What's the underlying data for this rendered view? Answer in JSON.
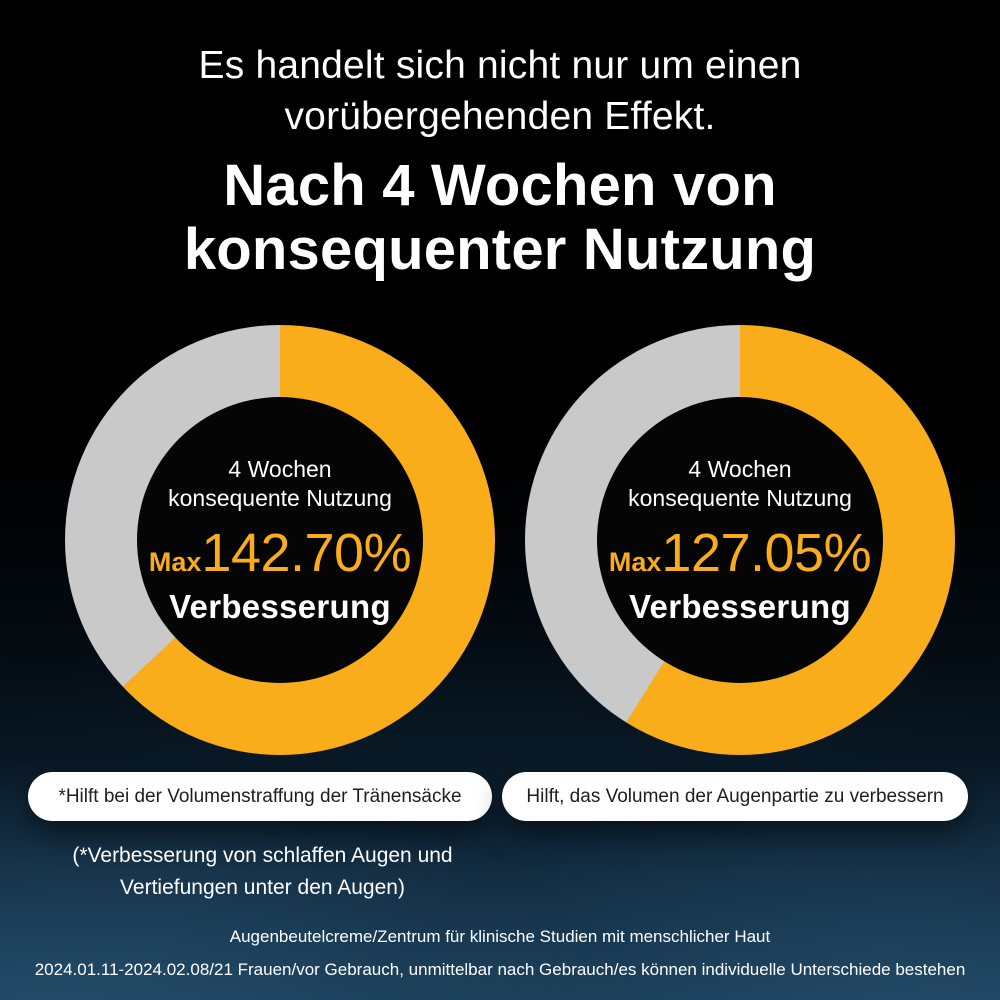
{
  "theme": {
    "accent": "#F9AD1B",
    "track_gray": "#C9C9CA",
    "background_top": "#000000",
    "background_bottom": "#14314A",
    "pill_bg": "#FFFFFF",
    "pill_text": "#1E1E1E",
    "text_white": "#FFFFFF"
  },
  "header": {
    "subtitle_line1": "Es handelt sich nicht nur um einen",
    "subtitle_line2": "vorübergehenden Effekt.",
    "title_line1": "Nach 4 Wochen von",
    "title_line2": "konsequenter Nutzung"
  },
  "chart_data": [
    {
      "type": "pie",
      "variant": "donut",
      "title": "4 Wochen konsequente Nutzung",
      "label_line1": "4 Wochen",
      "label_line2": "konsequente Nutzung",
      "max_prefix": "Max",
      "value_text": "142.70%",
      "value_pct": 142.7,
      "caption": "Verbesserung",
      "sweep_css": "227deg",
      "segments": [
        {
          "name": "improved",
          "color": "#F9AD1B",
          "sweep_deg": 227,
          "fraction": 0.63
        },
        {
          "name": "remainder",
          "color": "#C9C9CA",
          "sweep_deg": 133,
          "fraction": 0.37
        }
      ],
      "start_position": "12-oclock",
      "direction": "clockwise",
      "legend": "none"
    },
    {
      "type": "pie",
      "variant": "donut",
      "title": "4 Wochen konsequente Nutzung",
      "label_line1": "4 Wochen",
      "label_line2": "konsequente Nutzung",
      "max_prefix": "Max",
      "value_text": "127.05%",
      "value_pct": 127.05,
      "caption": "Verbesserung",
      "sweep_css": "212deg",
      "segments": [
        {
          "name": "improved",
          "color": "#F9AD1B",
          "sweep_deg": 212,
          "fraction": 0.59
        },
        {
          "name": "remainder",
          "color": "#C9C9CA",
          "sweep_deg": 148,
          "fraction": 0.41
        }
      ],
      "start_position": "12-oclock",
      "direction": "clockwise",
      "legend": "none"
    }
  ],
  "pills": [
    {
      "label": "*Hilft bei der Volumenstraffung der Tränensäcke"
    },
    {
      "label": "Hilft, das Volumen der Augenpartie zu verbessern"
    }
  ],
  "footnote": {
    "line1": "(*Verbesserung von schlaffen Augen und",
    "line2": "Vertiefungen unter den Augen)"
  },
  "footer": {
    "line1": "Augenbeutelcreme/Zentrum für klinische Studien mit menschlicher Haut",
    "line2": "2024.01.11-2024.02.08/21 Frauen/vor Gebrauch, unmittelbar nach Gebrauch/es können individuelle Unterschiede bestehen"
  }
}
